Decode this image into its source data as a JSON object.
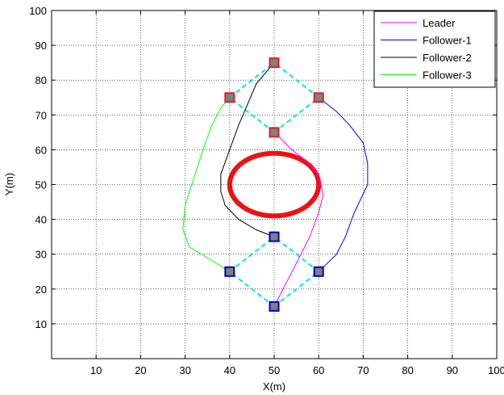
{
  "chart_data": {
    "type": "line",
    "title": "",
    "xlabel": "X(m)",
    "ylabel": "Y(m)",
    "xlim": [
      0,
      100
    ],
    "ylim": [
      0,
      100
    ],
    "xticks": [
      10,
      20,
      30,
      40,
      50,
      60,
      70,
      80,
      90,
      100
    ],
    "yticks": [
      10,
      20,
      30,
      40,
      50,
      60,
      70,
      80,
      90,
      100
    ],
    "grid": true,
    "legend_position": "top-right",
    "series": [
      {
        "name": "Leader",
        "color": "#ff00ff",
        "points": [
          [
            50,
            15
          ],
          [
            54,
            25
          ],
          [
            58,
            35
          ],
          [
            60,
            42
          ],
          [
            61,
            47
          ],
          [
            60,
            53
          ],
          [
            57,
            57
          ],
          [
            54,
            60
          ],
          [
            50,
            65
          ]
        ]
      },
      {
        "name": "Follower-1",
        "color": "#0000ff",
        "points": [
          [
            60,
            25
          ],
          [
            64,
            30
          ],
          [
            66,
            35
          ],
          [
            68,
            42
          ],
          [
            71,
            50
          ],
          [
            71,
            56
          ],
          [
            70,
            62
          ],
          [
            67,
            67
          ],
          [
            64,
            71
          ],
          [
            60,
            75
          ]
        ]
      },
      {
        "name": "Follower-2",
        "color": "#000000",
        "points": [
          [
            50,
            35
          ],
          [
            46,
            37
          ],
          [
            42,
            40
          ],
          [
            39,
            44
          ],
          [
            38,
            48
          ],
          [
            38,
            53
          ],
          [
            40,
            60
          ],
          [
            42,
            67
          ],
          [
            44,
            73
          ],
          [
            46,
            79
          ],
          [
            50,
            85
          ]
        ]
      },
      {
        "name": "Follower-3",
        "color": "#00ff00",
        "points": [
          [
            40,
            25
          ],
          [
            35,
            29
          ],
          [
            31,
            32
          ],
          [
            29.5,
            37
          ],
          [
            30,
            44
          ],
          [
            32,
            52
          ],
          [
            34,
            60
          ],
          [
            36,
            67
          ],
          [
            38,
            72
          ],
          [
            40,
            75
          ]
        ]
      }
    ],
    "formation_start": {
      "color": "#0000cc",
      "points": [
        [
          50,
          15
        ],
        [
          60,
          25
        ],
        [
          40,
          25
        ],
        [
          50,
          35
        ]
      ],
      "links": [
        [
          0,
          1
        ],
        [
          0,
          2
        ],
        [
          1,
          3
        ],
        [
          2,
          3
        ]
      ]
    },
    "formation_end": {
      "color": "#e02020",
      "points": [
        [
          50,
          65
        ],
        [
          60,
          75
        ],
        [
          40,
          75
        ],
        [
          50,
          85
        ]
      ],
      "links": [
        [
          0,
          1
        ],
        [
          0,
          2
        ],
        [
          1,
          3
        ],
        [
          2,
          3
        ]
      ]
    },
    "link_color": "#00e5ee",
    "obstacle": {
      "center": [
        50,
        50
      ],
      "radius_x": 10,
      "radius_y": 9,
      "color": "#ee1111"
    }
  }
}
